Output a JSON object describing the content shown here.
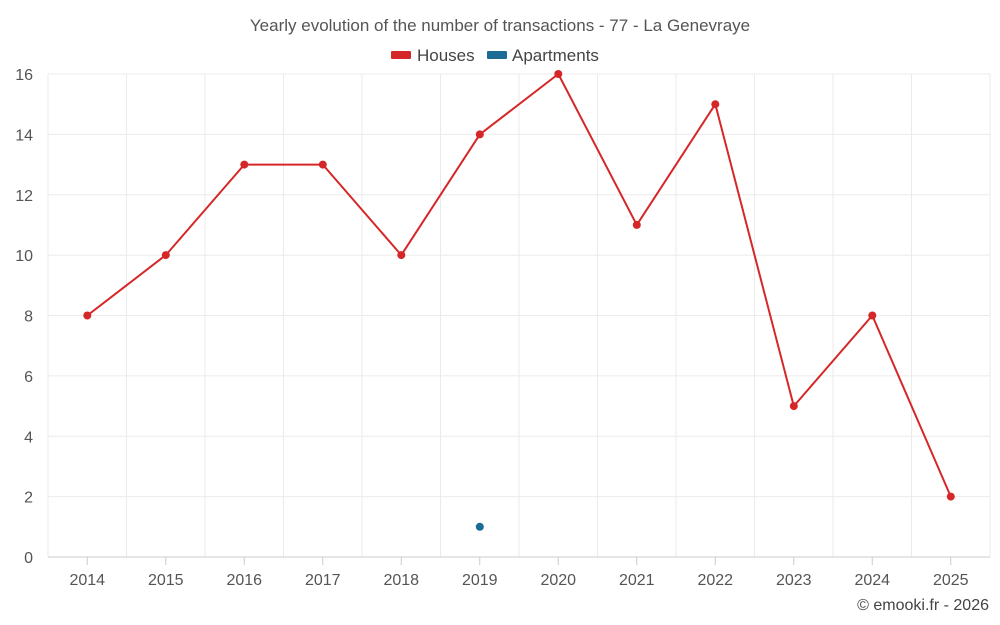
{
  "chart_data": {
    "type": "line",
    "title": "Yearly evolution of the number of transactions - 77 - La Genevraye",
    "xlabel": "",
    "ylabel": "",
    "categories": [
      "2014",
      "2015",
      "2016",
      "2017",
      "2018",
      "2019",
      "2020",
      "2021",
      "2022",
      "2023",
      "2024",
      "2025"
    ],
    "ylim": [
      0,
      16
    ],
    "yticks": [
      0,
      2,
      4,
      6,
      8,
      10,
      12,
      14,
      16
    ],
    "grid": true,
    "legend_position": "top-center",
    "series": [
      {
        "name": "Houses",
        "color": "#d62728",
        "values": [
          8,
          10,
          13,
          13,
          10,
          14,
          16,
          11,
          15,
          5,
          8,
          2
        ]
      },
      {
        "name": "Apartments",
        "color": "#1a6b96",
        "values": [
          null,
          null,
          null,
          null,
          null,
          1,
          null,
          null,
          null,
          null,
          null,
          null
        ]
      }
    ],
    "credit": "© emooki.fr - 2026"
  }
}
